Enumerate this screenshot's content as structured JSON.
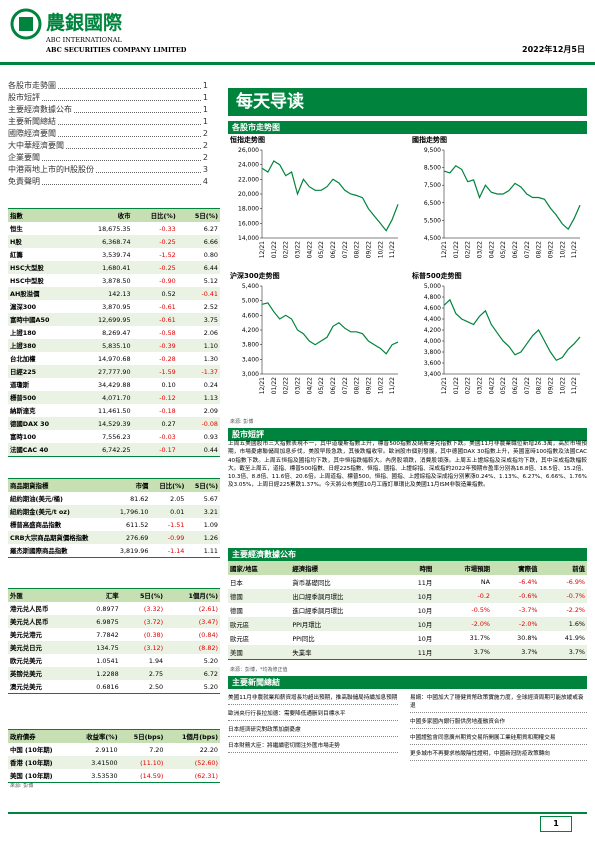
{
  "header": {
    "company_cn": "農銀國際",
    "company_en1": "ABC INTERNATIONAL",
    "company_en2": "ABC SECURITIES COMPANY LIMITED",
    "date": "2022年12月5日"
  },
  "toc": [
    {
      "title": "各股市走勢圖",
      "page": "1"
    },
    {
      "title": "股市短評",
      "page": "1"
    },
    {
      "title": "主要經濟數據公布",
      "page": "1"
    },
    {
      "title": "主要新聞總結",
      "page": "1"
    },
    {
      "title": "國際經濟要聞",
      "page": "2"
    },
    {
      "title": "大中華經濟要聞",
      "page": "2"
    },
    {
      "title": "企業要聞",
      "page": "2"
    },
    {
      "title": "中港兩地上市的H股股份",
      "page": "3"
    },
    {
      "title": "免責聲明",
      "page": "4"
    }
  ],
  "index_table": {
    "columns": [
      "指數",
      "收市",
      "日比(%)",
      "5日(%)"
    ],
    "rows": [
      [
        "恒生",
        "18,675.35",
        "-0.33",
        "6.27"
      ],
      [
        "H股",
        "6,368.74",
        "-0.25",
        "6.66"
      ],
      [
        "紅籌",
        "3,539.74",
        "-1.52",
        "0.80"
      ],
      [
        "HSC大型股",
        "1,680.41",
        "-0.25",
        "6.44"
      ],
      [
        "HSC中型股",
        "3,878.50",
        "-0.90",
        "5.12"
      ],
      [
        "AH股溢價",
        "142.13",
        "0.52",
        "-0.41"
      ],
      [
        "滬深300",
        "3,870.95",
        "-0.61",
        "2.52"
      ],
      [
        "富時中國A50",
        "12,699.95",
        "-0.61",
        "3.75"
      ],
      [
        "上證180",
        "8,269.47",
        "-0.58",
        "2.06"
      ],
      [
        "上證380",
        "5,835.10",
        "-0.39",
        "1.10"
      ],
      [
        "台北加權",
        "14,970.68",
        "-0.28",
        "1.30"
      ],
      [
        "日經225",
        "27,777.90",
        "-1.59",
        "-1.37"
      ],
      [
        "道瓊斯",
        "34,429.88",
        "0.10",
        "0.24"
      ],
      [
        "標普500",
        "4,071.70",
        "-0.12",
        "1.13"
      ],
      [
        "納斯達克",
        "11,461.50",
        "-0.18",
        "2.09"
      ],
      [
        "德國DAX 30",
        "14,529.39",
        "0.27",
        "-0.08"
      ],
      [
        "富時100",
        "7,556.23",
        "-0.03",
        "0.93"
      ],
      [
        "法國CAC 40",
        "6,742.25",
        "-0.17",
        "0.44"
      ]
    ]
  },
  "commodity_table": {
    "columns": [
      "商品期貨指標",
      "市價",
      "日比(%)",
      "5日(%)"
    ],
    "rows": [
      [
        "紐約期油(美元/桶)",
        "81.62",
        "2.05",
        "5.67"
      ],
      [
        "紐約期金(美元/t oz)",
        "1,796.10",
        "0.01",
        "3.21"
      ],
      [
        "標普高盛商品指數",
        "611.52",
        "-1.51",
        "1.09"
      ],
      [
        "CRB大宗商品期貨價格指數",
        "276.69",
        "-0.99",
        "1.26"
      ],
      [
        "羅杰斯國際商品指數",
        "3,819.96",
        "-1.14",
        "1.11"
      ]
    ]
  },
  "fx_table": {
    "columns": [
      "外匯",
      "汇率",
      "5日(%)",
      "1個月(%)"
    ],
    "rows": [
      [
        "港元兑人民币",
        "0.8977",
        "(3.32)",
        "(2.61)"
      ],
      [
        "美元兑人民币",
        "6.9875",
        "(3.72)",
        "(3.47)"
      ],
      [
        "美元兑港元",
        "7.7842",
        "(0.38)",
        "(0.84)"
      ],
      [
        "美元兑日元",
        "134.75",
        "(3.12)",
        "(8.82)"
      ],
      [
        "欧元兑美元",
        "1.0541",
        "1.94",
        "5.20"
      ],
      [
        "英镑兑美元",
        "1.2288",
        "2.75",
        "6.72"
      ],
      [
        "澳元兑美元",
        "0.6816",
        "2.50",
        "5.20"
      ]
    ]
  },
  "bond_table": {
    "columns": [
      "政府債券",
      "收益率(%)",
      "5日(bps)",
      "1個月(bps)"
    ],
    "rows": [
      [
        "中国 (10年期)",
        "2.9110",
        "7.20",
        "22.20"
      ],
      [
        "香港 (10年期)",
        "3.41500",
        "(11.10)",
        "(52.60)"
      ],
      [
        "美国 (10年期)",
        "3.53530",
        "(14.59)",
        "(62.31)"
      ]
    ]
  },
  "left_source": "來源: 彭博",
  "banner": "每天导读",
  "charts_section_title": "各股市走势图",
  "chart_data": [
    {
      "type": "line",
      "title": "恒指走势图",
      "color": "#00843d",
      "categories": [
        "12/21",
        null,
        "01/22",
        null,
        "02/22",
        null,
        "03/22",
        null,
        "04/22",
        null,
        "05/22",
        null,
        "06/22",
        null,
        "07/22",
        null,
        "08/22",
        null,
        "09/22",
        null,
        "10/22",
        null,
        "11/22",
        null
      ],
      "values": [
        23500,
        23000,
        24500,
        24000,
        22500,
        23000,
        20000,
        22000,
        21000,
        20500,
        20500,
        21000,
        22000,
        21500,
        20500,
        20000,
        19800,
        19500,
        18000,
        17000,
        16000,
        15000,
        16500,
        18600
      ],
      "ylim": [
        14000,
        26000
      ],
      "yticks": [
        {
          "value": 14000,
          "label": "14,000"
        },
        {
          "value": 16000,
          "label": "16,000"
        },
        {
          "value": 18000,
          "label": "18,000"
        },
        {
          "value": 20000,
          "label": "20,000"
        },
        {
          "value": 22000,
          "label": "22,000"
        },
        {
          "value": 24000,
          "label": "24,000"
        },
        {
          "value": 26000,
          "label": "26,000"
        }
      ]
    },
    {
      "type": "line",
      "title": "國指走势图",
      "color": "#00843d",
      "categories": [
        "12/21",
        null,
        "01/22",
        null,
        "02/22",
        null,
        "03/22",
        null,
        "04/22",
        null,
        "05/22",
        null,
        "06/22",
        null,
        "07/22",
        null,
        "08/22",
        null,
        "09/22",
        null,
        "10/22",
        null,
        "11/22",
        null
      ],
      "values": [
        8300,
        8200,
        8600,
        8400,
        7700,
        7800,
        6800,
        7500,
        7100,
        7000,
        7000,
        7200,
        7600,
        7400,
        7000,
        6800,
        6800,
        6700,
        6200,
        5800,
        5300,
        5000,
        5600,
        6369
      ],
      "ylim": [
        4500,
        9500
      ],
      "yticks": [
        {
          "value": 4500,
          "label": "4,500"
        },
        {
          "value": 5500,
          "label": "5,500"
        },
        {
          "value": 6500,
          "label": "6,500"
        },
        {
          "value": 7500,
          "label": "7,500"
        },
        {
          "value": 8500,
          "label": "8,500"
        },
        {
          "value": 9500,
          "label": "9,500"
        }
      ]
    },
    {
      "type": "line",
      "title": "沪深300走势图",
      "color": "#00843d",
      "categories": [
        "12/21",
        null,
        "01/22",
        null,
        "02/22",
        null,
        "03/22",
        null,
        "04/22",
        null,
        "05/22",
        null,
        "06/22",
        null,
        "07/22",
        null,
        "08/22",
        null,
        "09/22",
        null,
        "10/22",
        null,
        "11/22",
        null
      ],
      "values": [
        4900,
        4940,
        4700,
        4500,
        4600,
        4500,
        4200,
        4100,
        3900,
        3800,
        3900,
        4000,
        4300,
        4400,
        4250,
        4150,
        4150,
        4100,
        3900,
        3800,
        3700,
        3550,
        3800,
        3871
      ],
      "ylim": [
        3000,
        5400
      ],
      "yticks": [
        {
          "value": 3000,
          "label": "3,000"
        },
        {
          "value": 3400,
          "label": "3,400"
        },
        {
          "value": 3800,
          "label": "3,800"
        },
        {
          "value": 4200,
          "label": "4,200"
        },
        {
          "value": 4600,
          "label": "4,600"
        },
        {
          "value": 5000,
          "label": "5,000"
        },
        {
          "value": 5400,
          "label": "5,400"
        }
      ]
    },
    {
      "type": "line",
      "title": "标普500走势图",
      "color": "#00843d",
      "categories": [
        "12/21",
        null,
        "01/22",
        null,
        "02/22",
        null,
        "03/22",
        null,
        "04/22",
        null,
        "05/22",
        null,
        "06/22",
        null,
        "07/22",
        null,
        "08/22",
        null,
        "09/22",
        null,
        "10/22",
        null,
        "11/22",
        null
      ],
      "values": [
        4650,
        4750,
        4500,
        4400,
        4350,
        4300,
        4450,
        4550,
        4300,
        4150,
        4000,
        3900,
        3750,
        3800,
        3950,
        4100,
        4200,
        4000,
        3800,
        3650,
        3700,
        3850,
        3950,
        4072
      ],
      "ylim": [
        3400,
        5000
      ],
      "yticks": [
        {
          "value": 3400,
          "label": "3,400"
        },
        {
          "value": 3600,
          "label": "3,600"
        },
        {
          "value": 3800,
          "label": "3,800"
        },
        {
          "value": 4000,
          "label": "4,000"
        },
        {
          "value": 4200,
          "label": "4,200"
        },
        {
          "value": 4400,
          "label": "4,400"
        },
        {
          "value": 4600,
          "label": "4,600"
        },
        {
          "value": 4800,
          "label": "4,800"
        },
        {
          "value": 5000,
          "label": "5,000"
        }
      ]
    }
  ],
  "chart_source": "來源: 彭博",
  "commentary": {
    "title": "股市短評",
    "text": "上周五美國股市三大指數表現不一，其中道瓊斯指數上升，標普500指數及納斯達克指數下跌。美國11月非農業職位新增26.3萬，高於市場預期，市場憂慮聯儲局加息步伐，美股早段急跌，其後跌幅收窄。歐洲股市個別發展，其中德國DAX 30指數上升，英國富時100指數及法國CAC 40指數下跌。上周五恒指及國指均下跌，其中恒指跌幅較大。內房股領跌，消費股領漲。上周五上證綜指及深成指均下跌，其中深成指跌幅較大。截至上周五，道指、標普500指數、日經225指數、恒指、國指、上證綜指、深成指的2022年預期市盈率分別為18.8倍、18.5倍、15.2倍、10.3倍、8.8倍、11.6倍、20.6倍。上周道指、標普500、恒指、國指、上證綜指及深成指分別累漲0.24%、1.13%、6.27%、6.66%、1.76%及3.05%，上周日經225累跌1.37%。今天將公布美國10月工廠訂單環比及美國11月ISM非製造業指數。"
  },
  "econ": {
    "title": "主要經濟數據公布",
    "columns": [
      "國家/地區",
      "經濟指標",
      "時間",
      "市場預期",
      "實際值",
      "前值"
    ],
    "rows": [
      [
        "日本",
        "貨币基礎同比",
        "11月",
        "NA",
        "-6.4%",
        "-6.9%"
      ],
      [
        "德國",
        "出口經季調月環比",
        "10月",
        "-0.2",
        "-0.6%",
        "-0.7%"
      ],
      [
        "德國",
        "進口經季調月環比",
        "10月",
        "-0.5%",
        "-3.7%",
        "-2.2%"
      ],
      [
        "歐元區",
        "PPI月環比",
        "10月",
        "-2.0%",
        "-2.0%",
        "1.6%"
      ],
      [
        "歐元區",
        "PPI同比",
        "10月",
        "31.7%",
        "30.8%",
        "41.9%"
      ],
      [
        "美國",
        "失業率",
        "11月",
        "3.7%",
        "3.7%",
        "3.7%"
      ]
    ],
    "source": "來源：彭博，*均為修正值"
  },
  "news": {
    "title": "主要新聞總結",
    "left": [
      "美國11月非農就業和薪資增長均超出預期，推高聯儲局持續加息預期",
      "歐洲央行行長拉加德：需要降低通脹到目標水平",
      "日本經濟研究對政策加劇憂慮",
      "日本財務大臣：將繼續密切關注外匯市場走勢"
    ],
    "right": [
      "易綱：中國加大了穩健貨幣政策實施力度，全球經濟周期可能放緩或衰退",
      "中國多家國內銀行服供房地產融資合作",
      "中國證監會同意廣州期貨交易所開展工業硅期貨和期權交易",
      "更多城市不再要求核酸陰性證明，中國新冠防疫政策轉向"
    ]
  },
  "page_number": "1"
}
